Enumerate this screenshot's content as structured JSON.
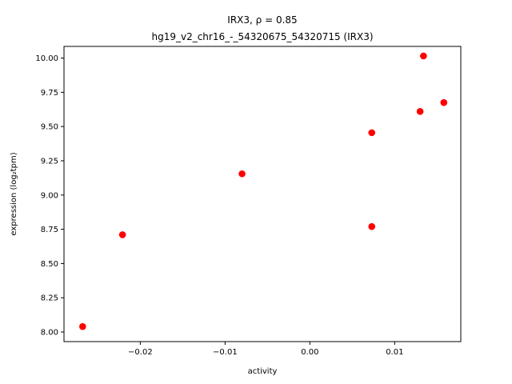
{
  "chart_data": {
    "type": "scatter",
    "title_line1": "IRX3, ρ = 0.85",
    "title_line2": "hg19_v2_chr16_-_54320675_54320715 (IRX3)",
    "xlabel": "activity",
    "ylabel": "expression (log₂tpm)",
    "xlim": [
      -0.029,
      0.0178
    ],
    "ylim": [
      7.93,
      10.085
    ],
    "xticks": [
      -0.02,
      -0.01,
      0.0,
      0.01
    ],
    "xtick_labels": [
      "−0.02",
      "−0.01",
      "0.00",
      "0.01"
    ],
    "yticks": [
      8.0,
      8.25,
      8.5,
      8.75,
      9.0,
      9.25,
      9.5,
      9.75,
      10.0
    ],
    "ytick_labels": [
      "8.00",
      "8.25",
      "8.50",
      "8.75",
      "9.00",
      "9.25",
      "9.50",
      "9.75",
      "10.00"
    ],
    "grid": false,
    "marker_color": "#ff0000",
    "x": [
      -0.0268,
      -0.0221,
      -0.008,
      0.0073,
      0.0073,
      0.013,
      0.0134,
      0.0158
    ],
    "y": [
      8.04,
      8.71,
      9.155,
      8.77,
      9.455,
      9.61,
      10.015,
      9.675
    ]
  }
}
